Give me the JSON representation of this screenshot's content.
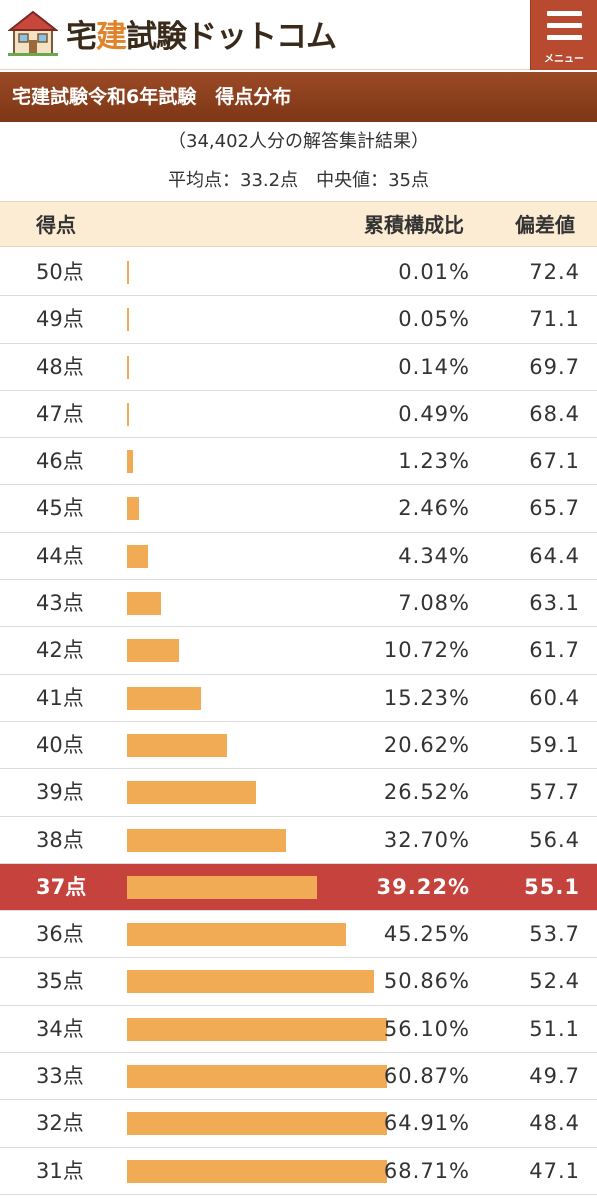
{
  "header": {
    "logo_text_a": "宅",
    "logo_text_b": "建",
    "logo_text_c": "試験ドットコム",
    "menu_label": "メニュー"
  },
  "title": "宅建試験令和6年試験　得点分布",
  "summary": {
    "respondents": "（34,402人分の解答集計結果）",
    "averages": "平均点：33.2点　中央値：35点"
  },
  "table": {
    "headers": {
      "score": "得点",
      "ratio": "累積構成比",
      "deviation": "偏差値"
    },
    "rows": [
      {
        "score": "50点",
        "ratio": "0.01%",
        "deviation": "72.4",
        "bar_value": 0.01
      },
      {
        "score": "49点",
        "ratio": "0.05%",
        "deviation": "71.1",
        "bar_value": 0.05
      },
      {
        "score": "48点",
        "ratio": "0.14%",
        "deviation": "69.7",
        "bar_value": 0.14
      },
      {
        "score": "47点",
        "ratio": "0.49%",
        "deviation": "68.4",
        "bar_value": 0.49
      },
      {
        "score": "46点",
        "ratio": "1.23%",
        "deviation": "67.1",
        "bar_value": 1.23
      },
      {
        "score": "45点",
        "ratio": "2.46%",
        "deviation": "65.7",
        "bar_value": 2.46
      },
      {
        "score": "44点",
        "ratio": "4.34%",
        "deviation": "64.4",
        "bar_value": 4.34
      },
      {
        "score": "43点",
        "ratio": "7.08%",
        "deviation": "63.1",
        "bar_value": 7.08
      },
      {
        "score": "42点",
        "ratio": "10.72%",
        "deviation": "61.7",
        "bar_value": 10.72
      },
      {
        "score": "41点",
        "ratio": "15.23%",
        "deviation": "60.4",
        "bar_value": 15.23
      },
      {
        "score": "40点",
        "ratio": "20.62%",
        "deviation": "59.1",
        "bar_value": 20.62
      },
      {
        "score": "39点",
        "ratio": "26.52%",
        "deviation": "57.7",
        "bar_value": 26.52
      },
      {
        "score": "38点",
        "ratio": "32.70%",
        "deviation": "56.4",
        "bar_value": 32.7
      },
      {
        "score": "37点",
        "ratio": "39.22%",
        "deviation": "55.1",
        "bar_value": 39.22,
        "highlight": true
      },
      {
        "score": "36点",
        "ratio": "45.25%",
        "deviation": "53.7",
        "bar_value": 45.25
      },
      {
        "score": "35点",
        "ratio": "50.86%",
        "deviation": "52.4",
        "bar_value": 50.86
      },
      {
        "score": "34点",
        "ratio": "56.10%",
        "deviation": "51.1",
        "bar_value": 56.1
      },
      {
        "score": "33点",
        "ratio": "60.87%",
        "deviation": "49.7",
        "bar_value": 60.87
      },
      {
        "score": "32点",
        "ratio": "64.91%",
        "deviation": "48.4",
        "bar_value": 64.91
      },
      {
        "score": "31点",
        "ratio": "68.71%",
        "deviation": "47.1",
        "bar_value": 68.71
      }
    ]
  },
  "colors": {
    "bar": "#f2ab55",
    "highlight_row": "#c5423d",
    "title_bar": "#8a3e1c",
    "menu_button": "#b84a2f",
    "table_header": "#fdecd4"
  }
}
